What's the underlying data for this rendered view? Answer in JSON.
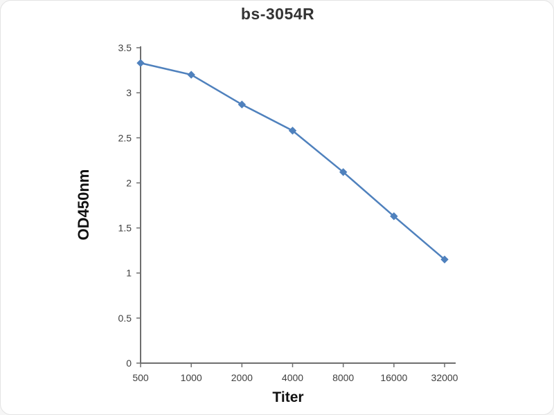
{
  "chart_data": {
    "type": "line",
    "title": "bs-3054R",
    "xlabel": "Titer",
    "ylabel": "OD450nm",
    "categories": [
      "500",
      "1000",
      "2000",
      "4000",
      "8000",
      "16000",
      "32000"
    ],
    "values": [
      3.33,
      3.2,
      2.87,
      2.58,
      2.12,
      1.63,
      1.15
    ],
    "yticks": [
      "0",
      "0.5",
      "1",
      "1.5",
      "2",
      "2.5",
      "3",
      "3.5"
    ],
    "ytick_values": [
      0,
      0.5,
      1,
      1.5,
      2,
      2.5,
      3,
      3.5
    ],
    "ylim": [
      0,
      3.5
    ],
    "grid": false,
    "legend": "none",
    "marker": "diamond",
    "line_color": "#4f81bd",
    "axis_color": "#6e6e6e",
    "tick_label_color": "#3f3f3f"
  }
}
